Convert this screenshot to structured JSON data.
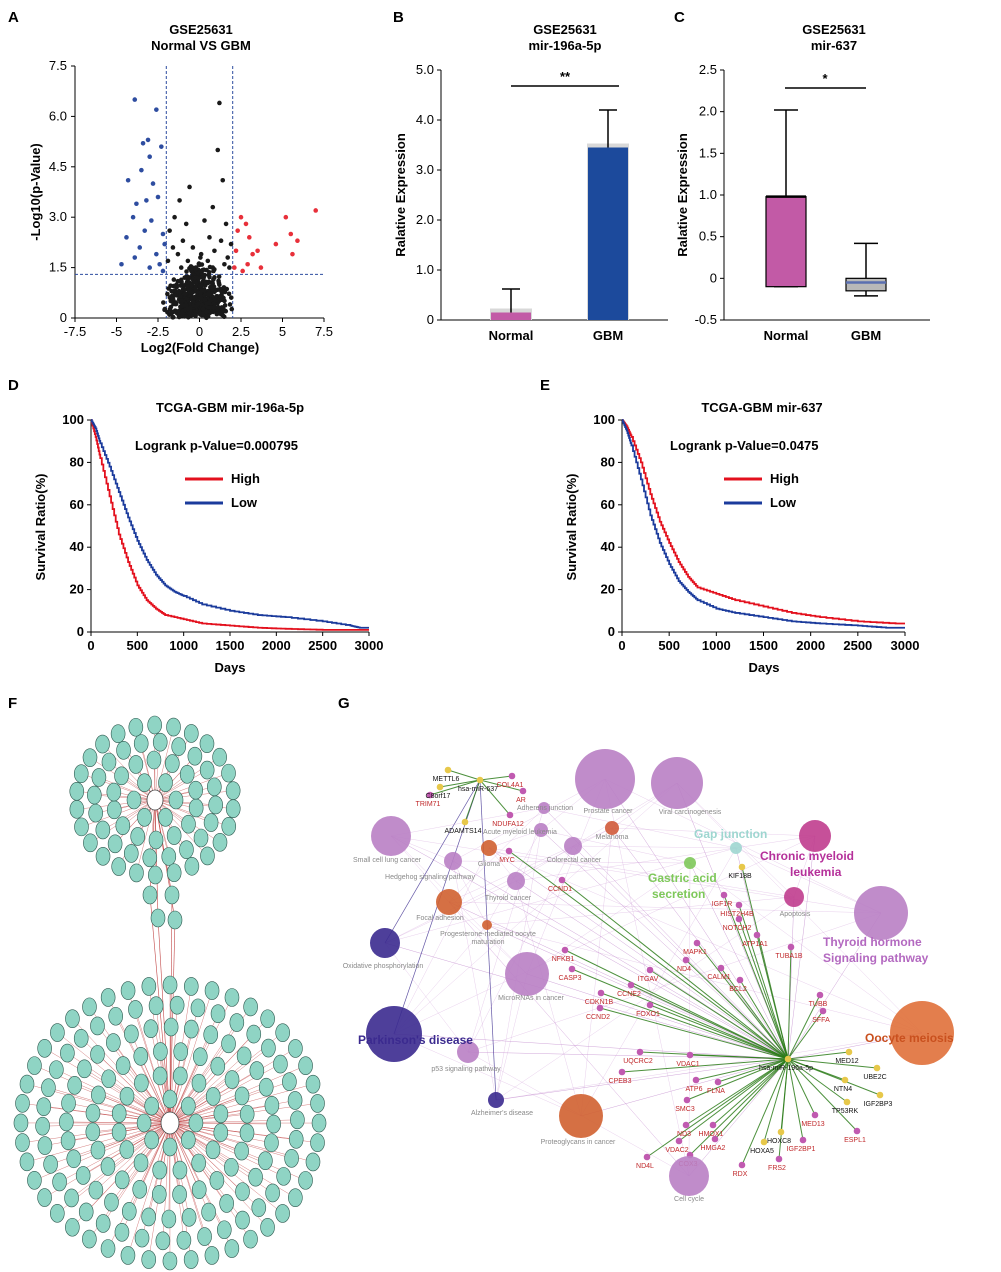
{
  "panel_labels": [
    "A",
    "B",
    "C",
    "D",
    "E",
    "F",
    "G"
  ],
  "colors": {
    "sig_down": "#2e4da0",
    "sig_up": "#e8303a",
    "ns": "#1a1a1a",
    "bar_normal": "#c25aa6",
    "bar_gbm": "#1c4a9c",
    "km_high": "#e3101d",
    "km_low": "#1b3b9c",
    "net_node": "#8fd4c4",
    "purple": "#b97fc4",
    "darkblue": "#3b2a8f",
    "orange": "#e0703a",
    "green": "#2d7d1a"
  },
  "chart_data": [
    {
      "id": "A",
      "type": "scatter",
      "title": "GSE25631\nNormal VS GBM",
      "title_lines": [
        "GSE25631",
        "Normal VS GBM"
      ],
      "xlabel": "Log2(Fold Change)",
      "ylabel": "-Log10(p-Value)",
      "xlim": [
        -7.5,
        7.5
      ],
      "ylim": [
        0,
        7.5
      ],
      "xticks": [
        "-7.5",
        "-5",
        "-2.5",
        "0",
        "2.5",
        "5",
        "7.5"
      ],
      "yticks": [
        "0",
        "1.5",
        "3.0",
        "4.5",
        "6.0",
        "7.5"
      ],
      "thresholds": {
        "fc": [
          -2,
          2
        ],
        "p": 1.3
      },
      "series": [
        {
          "name": "down",
          "points": [
            [
              -3.9,
              6.5
            ],
            [
              -2.6,
              6.2
            ],
            [
              -3.1,
              5.3
            ],
            [
              -3.4,
              5.2
            ],
            [
              -2.3,
              5.1
            ],
            [
              -3.0,
              4.8
            ],
            [
              -4.3,
              4.1
            ],
            [
              -3.5,
              4.4
            ],
            [
              -2.8,
              4.0
            ],
            [
              -3.8,
              3.4
            ],
            [
              -3.2,
              3.5
            ],
            [
              -2.5,
              3.6
            ],
            [
              -4.0,
              3.0
            ],
            [
              -3.3,
              2.6
            ],
            [
              -2.9,
              2.9
            ],
            [
              -2.2,
              2.5
            ],
            [
              -4.4,
              2.4
            ],
            [
              -3.6,
              2.1
            ],
            [
              -2.6,
              1.9
            ],
            [
              -2.1,
              2.2
            ],
            [
              -4.7,
              1.6
            ],
            [
              -3.0,
              1.5
            ],
            [
              -2.4,
              1.6
            ],
            [
              -3.9,
              1.8
            ],
            [
              -2.2,
              1.4
            ]
          ]
        },
        {
          "name": "up",
          "points": [
            [
              7.0,
              3.2
            ],
            [
              5.9,
              2.3
            ],
            [
              5.5,
              2.5
            ],
            [
              5.2,
              3.0
            ],
            [
              4.6,
              2.2
            ],
            [
              3.5,
              2.0
            ],
            [
              3.2,
              1.9
            ],
            [
              2.8,
              2.8
            ],
            [
              2.5,
              3.0
            ],
            [
              2.3,
              2.6
            ],
            [
              2.9,
              1.6
            ],
            [
              2.2,
              2.0
            ],
            [
              3.7,
              1.5
            ],
            [
              2.6,
              1.4
            ],
            [
              2.1,
              1.5
            ],
            [
              5.6,
              1.9
            ],
            [
              3.0,
              2.4
            ]
          ]
        },
        {
          "name": "ns",
          "points": [
            [
              1.2,
              6.4
            ],
            [
              1.4,
              4.1
            ],
            [
              1.1,
              5.0
            ],
            [
              0.8,
              3.3
            ],
            [
              -0.6,
              3.9
            ],
            [
              -1.2,
              3.5
            ],
            [
              -1.5,
              3.0
            ],
            [
              -0.8,
              2.8
            ],
            [
              0.3,
              2.9
            ],
            [
              1.6,
              2.8
            ],
            [
              -1.8,
              2.6
            ],
            [
              -1.0,
              2.3
            ],
            [
              0.6,
              2.4
            ],
            [
              1.3,
              2.3
            ],
            [
              1.9,
              2.2
            ],
            [
              -1.6,
              2.1
            ],
            [
              -0.4,
              2.1
            ],
            [
              0.9,
              2.0
            ],
            [
              -1.3,
              1.9
            ],
            [
              0.1,
              1.9
            ],
            [
              1.7,
              1.8
            ],
            [
              -1.9,
              1.7
            ],
            [
              -0.7,
              1.7
            ],
            [
              0.5,
              1.7
            ],
            [
              1.5,
              1.6
            ],
            [
              -1.1,
              1.5
            ],
            [
              -0.2,
              1.5
            ],
            [
              0.8,
              1.5
            ],
            [
              1.8,
              1.5
            ]
          ]
        }
      ]
    },
    {
      "id": "B",
      "type": "bar",
      "title": "GSE25631\nmir-196a-5p",
      "title_lines": [
        "GSE25631",
        "mir-196a-5p"
      ],
      "categories": [
        "Normal",
        "GBM"
      ],
      "values": [
        0.15,
        3.45
      ],
      "error_upper": [
        0.62,
        4.2
      ],
      "ylabel": "Ralative Expression",
      "ylim": [
        0,
        5.0
      ],
      "yticks": [
        "0",
        "1.0",
        "2.0",
        "3.0",
        "4.0",
        "5.0"
      ],
      "significance": "**"
    },
    {
      "id": "C",
      "type": "box",
      "title": "GSE25631\nmir-637",
      "title_lines": [
        "GSE25631",
        "mir-637"
      ],
      "categories": [
        "Normal",
        "GBM"
      ],
      "boxes": [
        {
          "min": -0.1,
          "q1": -0.1,
          "median": 0.98,
          "q3": 0.98,
          "max": 2.02
        },
        {
          "min": -0.21,
          "q1": -0.15,
          "median": -0.05,
          "q3": 0.0,
          "max": 0.42
        }
      ],
      "ylabel": "Ralative Expression",
      "ylim": [
        -0.5,
        2.5
      ],
      "yticks": [
        "-0.5",
        "0",
        "0.5",
        "1.0",
        "1.5",
        "2.0",
        "2.5"
      ],
      "significance": "*"
    },
    {
      "id": "D",
      "type": "line",
      "title": "TCGA-GBM mir-196a-5p",
      "annotation": "Logrank p-Value=0.000795",
      "xlabel": "Days",
      "ylabel": "Survival Ratio(%)",
      "xlim": [
        0,
        3000
      ],
      "ylim": [
        0,
        100
      ],
      "xticks": [
        "0",
        "500",
        "1000",
        "1500",
        "2000",
        "2500",
        "3000"
      ],
      "yticks": [
        "0",
        "20",
        "40",
        "60",
        "80",
        "100"
      ],
      "legend": [
        "High",
        "Low"
      ],
      "series": [
        {
          "name": "High",
          "x": [
            0,
            50,
            100,
            200,
            300,
            400,
            500,
            600,
            700,
            800,
            1000,
            1200,
            1500,
            1800,
            2100,
            2500,
            3000
          ],
          "values": [
            100,
            92,
            82,
            64,
            46,
            33,
            22,
            15,
            11,
            8,
            6,
            4,
            3,
            2,
            1.5,
            1,
            1
          ]
        },
        {
          "name": "Low",
          "x": [
            0,
            50,
            100,
            200,
            300,
            400,
            500,
            600,
            700,
            800,
            900,
            1000,
            1200,
            1500,
            1800,
            2100,
            2500,
            2800,
            2900,
            3000
          ],
          "values": [
            100,
            96,
            89,
            78,
            66,
            54,
            43,
            34,
            27,
            22,
            19,
            17,
            13,
            10,
            8,
            7,
            5,
            3,
            2,
            2
          ]
        }
      ]
    },
    {
      "id": "E",
      "type": "line",
      "title": "TCGA-GBM mir-637",
      "annotation": "Logrank p-Value=0.0475",
      "xlabel": "Days",
      "ylabel": "Survival Ratio(%)",
      "xlim": [
        0,
        3000
      ],
      "ylim": [
        0,
        100
      ],
      "xticks": [
        "0",
        "500",
        "1000",
        "1500",
        "2000",
        "2500",
        "3000"
      ],
      "yticks": [
        "0",
        "20",
        "40",
        "60",
        "80",
        "100"
      ],
      "legend": [
        "High",
        "Low"
      ],
      "series": [
        {
          "name": "High",
          "x": [
            0,
            50,
            100,
            200,
            300,
            400,
            500,
            600,
            700,
            800,
            1000,
            1200,
            1500,
            1800,
            2100,
            2500,
            2900,
            3000
          ],
          "values": [
            100,
            97,
            92,
            80,
            65,
            52,
            42,
            33,
            26,
            21,
            18,
            15,
            12,
            9,
            7,
            5,
            4,
            4
          ]
        },
        {
          "name": "Low",
          "x": [
            0,
            50,
            100,
            200,
            300,
            400,
            500,
            600,
            700,
            800,
            1000,
            1200,
            1500,
            1800,
            2100,
            2500,
            2800,
            3000
          ],
          "values": [
            100,
            95,
            88,
            72,
            55,
            42,
            32,
            24,
            19,
            15,
            11,
            9,
            7,
            5,
            4,
            3,
            2,
            2
          ]
        }
      ]
    }
  ],
  "panel_g": {
    "big_labels": [
      {
        "text": "Gap junction",
        "color": "#9ed6d0"
      },
      {
        "text": "Chronic myeloid",
        "color": "#b5309a"
      },
      {
        "text": "leukemia",
        "color": "#b5309a"
      },
      {
        "text": "Gastric acid",
        "color": "#7ec85a"
      },
      {
        "text": "secretion",
        "color": "#7ec85a"
      },
      {
        "text": "Thyroid hormone",
        "color": "#b369c0"
      },
      {
        "text": "Signaling pathway",
        "color": "#b369c0"
      },
      {
        "text": "Parkinson's disease",
        "color": "#3b2a8f"
      },
      {
        "text": "Oocyte meiosis",
        "color": "#c9501e"
      }
    ],
    "pathway_labels": [
      "Prostate cancer",
      "Viral carcinogenesis",
      "Adherens junction",
      "Acute myeloid leukemia",
      "Melanoma",
      "Small cell lung cancer",
      "Glioma",
      "Colorectal cancer",
      "Hedgehog signaling pathway",
      "Thyroid cancer",
      "Focal adhesion",
      "Progesterone-mediated oocyte",
      "maturation",
      "Oxidative phosphorylation",
      "MicroRNAs in cancer",
      "p53 signaling pathway",
      "Alzheimer's disease",
      "Proteoglycans in cancer",
      "Cell cycle",
      "Apoptosis"
    ],
    "genes_red": [
      "COL4A1",
      "AR",
      "NDUFA12",
      "TRIM71",
      "MYC",
      "CCND1",
      "IGF1R",
      "HIST2H4B",
      "NOTCH2",
      "ATP1A1",
      "TUBA1B",
      "MAPK1",
      "NFKB1",
      "CASP3",
      "ITGAV",
      "ND4",
      "CALM1",
      "BCL2",
      "CDKN1B",
      "CCNE2",
      "FOXO1",
      "CCND2",
      "TUBB",
      "SFFA",
      "UQCRC2",
      "VDAC1",
      "CPEB3",
      "ATP6",
      "FLNA",
      "SMC3",
      "HMOX1",
      "HMGA2",
      "MED13",
      "ESPL1",
      "ND3",
      "VDAC2",
      "ND4L",
      "COX3",
      "RDX",
      "FRS2",
      "IGF2BP1"
    ],
    "genes_black": [
      "METTL6",
      "C8orf17",
      "hsa-miR-637",
      "ADAMTS14",
      "KIF18B",
      "MED12",
      "UBE2C",
      "NTN4",
      "TP53RK",
      "IGF2BP3",
      "HOXC8",
      "HOXA5",
      "hsa-miR-196a-5p"
    ]
  }
}
